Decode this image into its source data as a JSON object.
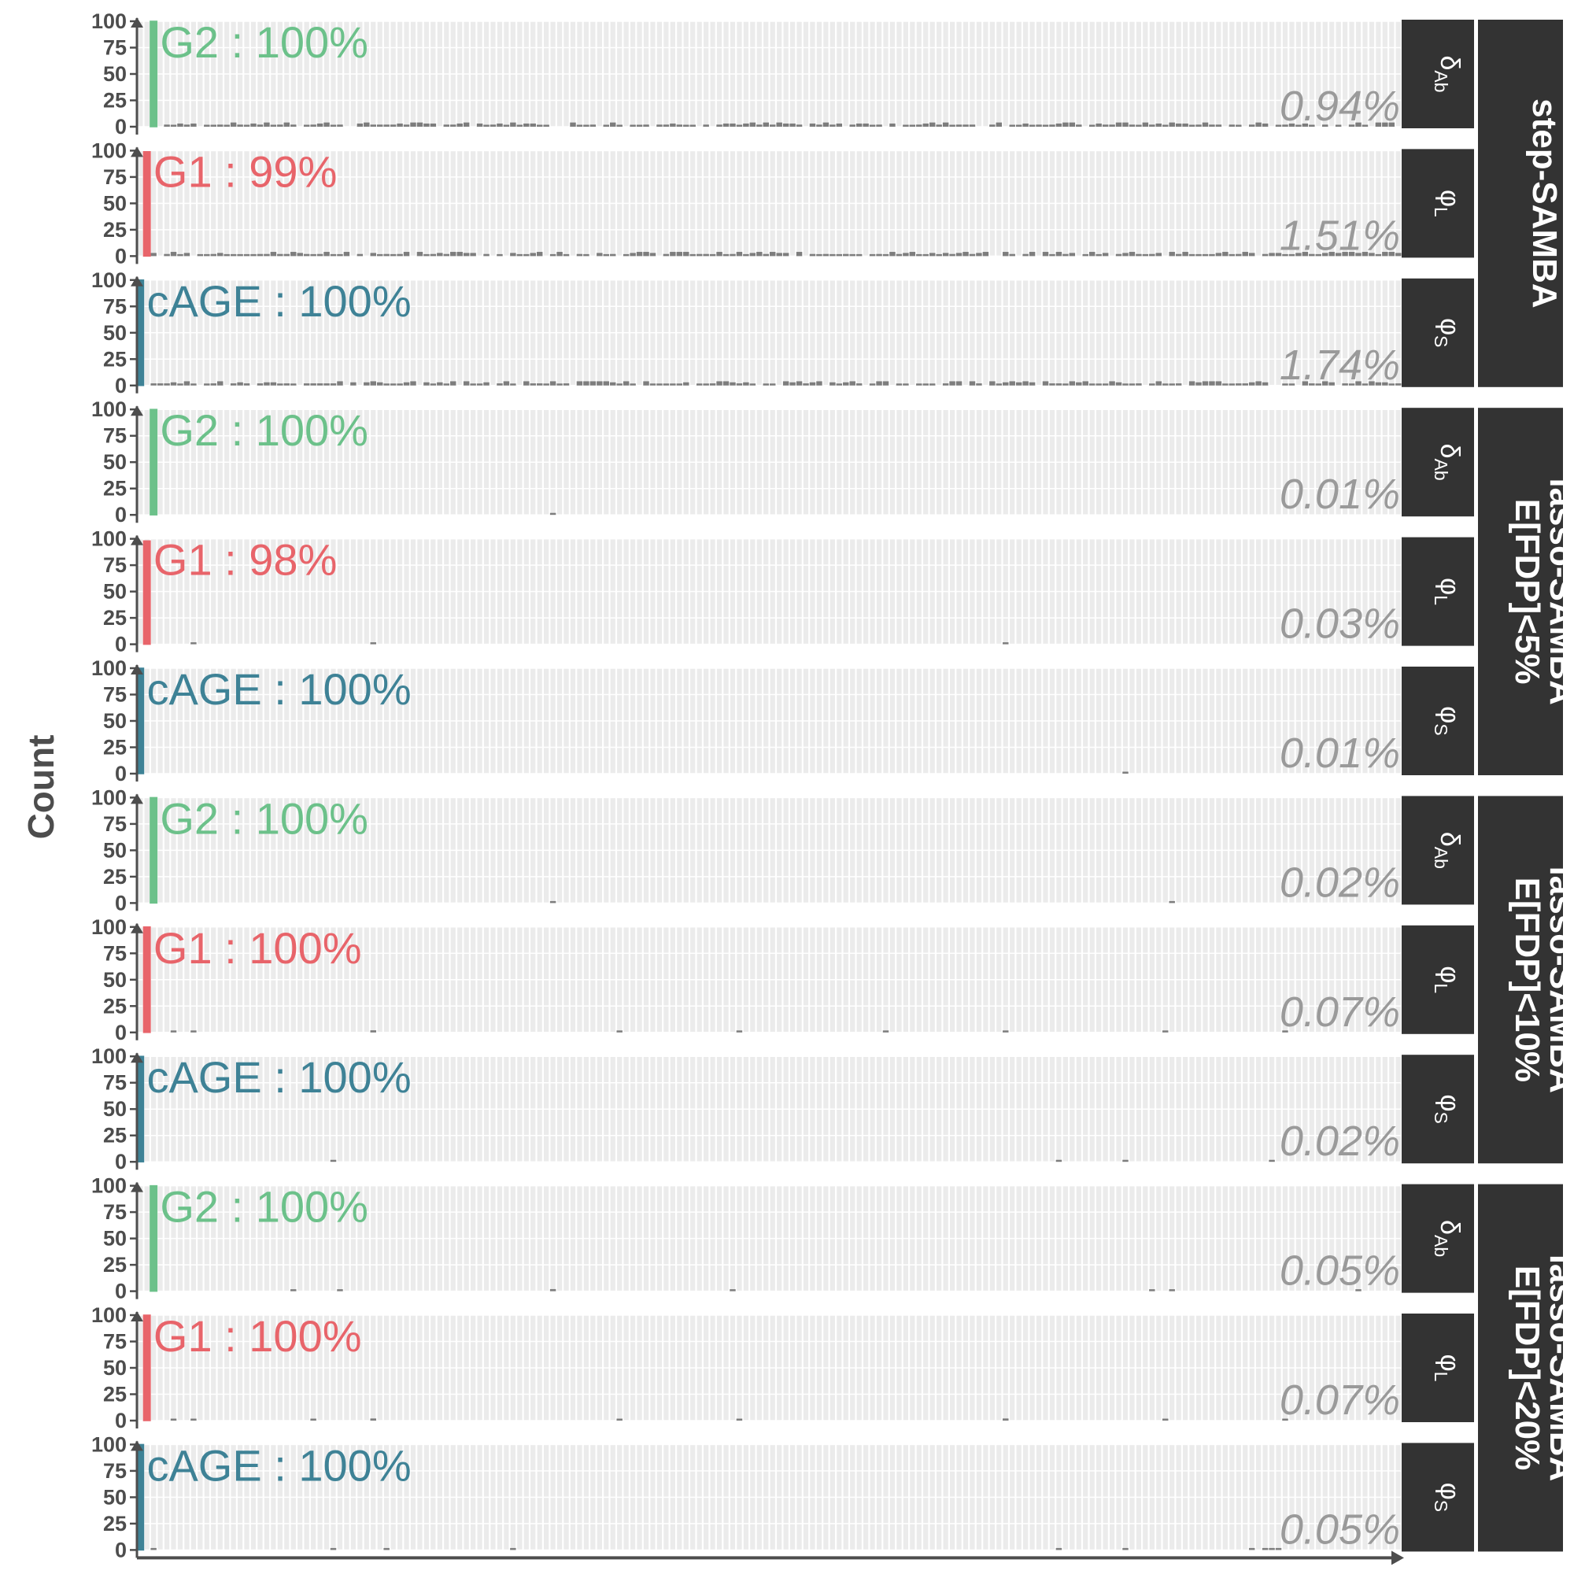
{
  "chart_data": {
    "type": "bar",
    "ylabel": "Count",
    "xlabel": "",
    "ylim": [
      0,
      100
    ],
    "yticks": [
      "100",
      "75",
      "50",
      "25",
      "0"
    ],
    "grid": true,
    "n_bins": 190,
    "colors": {
      "G2": "#6cc18a",
      "G1": "#e8646a",
      "cAGE": "#3e8296",
      "background_bars": "#7d7d7d",
      "strip": "#333333"
    },
    "methods": [
      {
        "label_lines": [
          "step-SAMBA"
        ]
      },
      {
        "label_lines": [
          "lasso-SAMBA",
          "E[FDP]<5%"
        ]
      },
      {
        "label_lines": [
          "lasso-SAMBA",
          "E[FDP]<10%"
        ]
      },
      {
        "label_lines": [
          "lasso-SAMBA",
          "E[FDP]<20%"
        ]
      }
    ],
    "panels": [
      {
        "method": 0,
        "param": "δ",
        "param_sub": "Ab",
        "group": "G2",
        "label": "G2 : 100%",
        "value": 100,
        "pct_label": "0.94%",
        "bg": "dense"
      },
      {
        "method": 0,
        "param": "φ",
        "param_sub": "L",
        "group": "G1",
        "label": "G1 : 99%",
        "value": 99,
        "pct_label": "1.51%",
        "bg": "dense"
      },
      {
        "method": 0,
        "param": "φ",
        "param_sub": "S",
        "group": "cAGE",
        "label": "cAGE : 100%",
        "value": 100,
        "pct_label": "1.74%",
        "bg": "dense"
      },
      {
        "method": 1,
        "param": "δ",
        "param_sub": "Ab",
        "group": "G2",
        "label": "G2 : 100%",
        "value": 100,
        "pct_label": "0.01%",
        "bg": [
          [
            62,
            1
          ]
        ]
      },
      {
        "method": 1,
        "param": "φ",
        "param_sub": "L",
        "group": "G1",
        "label": "G1 : 98%",
        "value": 98,
        "pct_label": "0.03%",
        "bg": [
          [
            1,
            2
          ],
          [
            8,
            1
          ],
          [
            35,
            1
          ],
          [
            130,
            1
          ]
        ]
      },
      {
        "method": 1,
        "param": "φ",
        "param_sub": "S",
        "group": "cAGE",
        "label": "cAGE : 100%",
        "value": 100,
        "pct_label": "0.01%",
        "bg": [
          [
            148,
            1
          ]
        ]
      },
      {
        "method": 2,
        "param": "δ",
        "param_sub": "Ab",
        "group": "G2",
        "label": "G2 : 100%",
        "value": 100,
        "pct_label": "0.02%",
        "bg": [
          [
            62,
            1
          ],
          [
            155,
            1
          ]
        ]
      },
      {
        "method": 2,
        "param": "φ",
        "param_sub": "L",
        "group": "G1",
        "label": "G1 : 100%",
        "value": 100,
        "pct_label": "0.07%",
        "bg": [
          [
            5,
            1
          ],
          [
            8,
            1
          ],
          [
            35,
            2
          ],
          [
            72,
            1
          ],
          [
            90,
            1
          ],
          [
            112,
            1
          ],
          [
            130,
            1
          ],
          [
            154,
            1
          ],
          [
            172,
            1
          ]
        ]
      },
      {
        "method": 2,
        "param": "φ",
        "param_sub": "S",
        "group": "cAGE",
        "label": "cAGE : 100%",
        "value": 100,
        "pct_label": "0.02%",
        "bg": [
          [
            29,
            1
          ],
          [
            138,
            1
          ],
          [
            148,
            1
          ],
          [
            170,
            1
          ]
        ]
      },
      {
        "method": 3,
        "param": "δ",
        "param_sub": "Ab",
        "group": "G2",
        "label": "G2 : 100%",
        "value": 100,
        "pct_label": "0.05%",
        "bg": [
          [
            23,
            1
          ],
          [
            30,
            1
          ],
          [
            62,
            2
          ],
          [
            89,
            1
          ],
          [
            152,
            1
          ],
          [
            155,
            1
          ],
          [
            183,
            1
          ]
        ]
      },
      {
        "method": 3,
        "param": "φ",
        "param_sub": "L",
        "group": "G1",
        "label": "G1 : 100%",
        "value": 100,
        "pct_label": "0.07%",
        "bg": [
          [
            5,
            1
          ],
          [
            8,
            1
          ],
          [
            26,
            1
          ],
          [
            35,
            2
          ],
          [
            72,
            1
          ],
          [
            90,
            1
          ],
          [
            130,
            2
          ],
          [
            154,
            1
          ],
          [
            172,
            1
          ]
        ]
      },
      {
        "method": 3,
        "param": "φ",
        "param_sub": "S",
        "group": "cAGE",
        "label": "cAGE : 100%",
        "value": 100,
        "pct_label": "0.05%",
        "bg": [
          [
            2,
            1
          ],
          [
            29,
            1
          ],
          [
            37,
            1
          ],
          [
            56,
            1
          ],
          [
            138,
            1
          ],
          [
            148,
            1
          ],
          [
            167,
            1
          ],
          [
            169,
            1
          ],
          [
            170,
            1
          ],
          [
            171,
            1
          ]
        ]
      }
    ]
  }
}
